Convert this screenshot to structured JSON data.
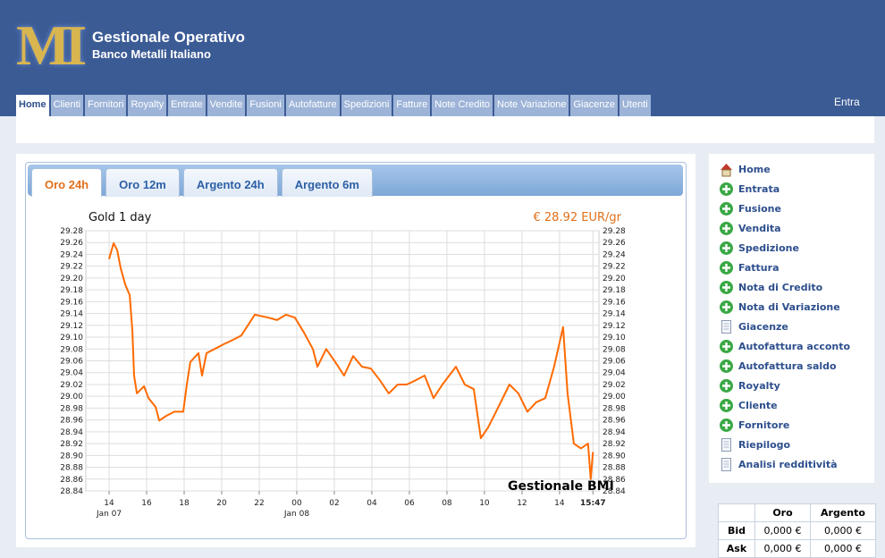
{
  "header": {
    "logo": "MI",
    "title": "Gestionale Operativo",
    "subtitle": "Banco Metalli Italiano",
    "login": "Entra"
  },
  "nav": {
    "items": [
      "Home",
      "Clienti",
      "Fornitori",
      "Royalty",
      "Entrate",
      "Vendite",
      "Fusioni",
      "Autofatture",
      "Spedizioni",
      "Fatture",
      "Note Credito",
      "Note Variazione",
      "Giacenze",
      "Utenti"
    ],
    "active": 0
  },
  "tabs": {
    "items": [
      "Oro 24h",
      "Oro 12m",
      "Argento 24h",
      "Argento 6m"
    ],
    "active": 0
  },
  "chart_data": {
    "type": "line",
    "title": "Gold 1 day",
    "price": "€ 28.92 EUR/gr",
    "watermark": "Gestionale BMI",
    "x": [
      14.0,
      14.24,
      14.43,
      14.62,
      14.86,
      15.1,
      15.24,
      15.33,
      15.48,
      15.86,
      16.1,
      16.48,
      16.67,
      17.05,
      17.48,
      17.95,
      18.14,
      18.33,
      18.76,
      18.95,
      19.19,
      19.62,
      20.1,
      20.57,
      21.05,
      21.52,
      21.76,
      22.48,
      22.95,
      23.43,
      23.9,
      24.38,
      24.86,
      25.1,
      25.57,
      26.05,
      26.52,
      27.0,
      27.48,
      27.95,
      28.43,
      28.9,
      29.38,
      29.86,
      30.33,
      30.81,
      31.29,
      31.76,
      32.48,
      32.95,
      33.43,
      33.81,
      34.19,
      34.62,
      35.33,
      35.81,
      36.29,
      36.76,
      37.24,
      37.71,
      38.19,
      38.43,
      38.76,
      39.14,
      39.52,
      39.66,
      39.78
    ],
    "series": [
      {
        "color": "#ff6a00",
        "values": [
          29.232,
          29.259,
          29.247,
          29.216,
          29.189,
          29.171,
          29.11,
          29.035,
          29.005,
          29.017,
          28.997,
          28.982,
          28.959,
          28.967,
          28.974,
          28.974,
          29.02,
          29.058,
          29.073,
          29.035,
          29.073,
          29.08,
          29.088,
          29.095,
          29.103,
          29.126,
          29.138,
          29.133,
          29.129,
          29.138,
          29.133,
          29.108,
          29.08,
          29.05,
          29.08,
          29.058,
          29.035,
          29.068,
          29.05,
          29.047,
          29.027,
          29.005,
          29.02,
          29.02,
          29.027,
          29.035,
          28.997,
          29.02,
          29.05,
          29.02,
          29.012,
          28.929,
          28.947,
          28.974,
          29.02,
          29.005,
          28.974,
          28.99,
          28.997,
          29.05,
          29.117,
          29.005,
          28.92,
          28.912,
          28.92,
          28.86,
          28.906
        ]
      }
    ],
    "xlim": [
      12.76,
      40.1
    ],
    "xticks": [
      14,
      16,
      18,
      20,
      22,
      {
        "value": 24,
        "label": "00"
      },
      {
        "value": 26,
        "label": "02"
      },
      {
        "value": 28,
        "label": "04"
      },
      {
        "value": 30,
        "label": "06"
      },
      {
        "value": 32,
        "label": "08"
      },
      {
        "value": 34,
        "label": "10"
      },
      {
        "value": 36,
        "label": "12"
      },
      {
        "value": 38,
        "label": "14"
      },
      {
        "value": 39.78,
        "label": "15:47"
      }
    ],
    "x_date_labels": [
      {
        "value": 14,
        "label": "Jan 07"
      },
      {
        "value": 24,
        "label": "Jan 08"
      }
    ],
    "ylim": [
      28.84,
      29.28
    ],
    "yticks": [
      28.84,
      28.86,
      28.88,
      {
        "value": 28.9,
        "label": "28.90"
      },
      28.92,
      28.94,
      28.96,
      28.98,
      {
        "value": 29,
        "label": "29.00"
      },
      29.02,
      29.04,
      29.06,
      29.08,
      {
        "value": 29.1,
        "label": "29.10"
      },
      29.12,
      29.14,
      29.16,
      29.18,
      {
        "value": 29.2,
        "label": "29.20"
      },
      29.22,
      29.24,
      29.26,
      29.28
    ],
    "grid": true,
    "right_axis": true
  },
  "sidebar": {
    "links": [
      {
        "label": "Home",
        "icon": "home"
      },
      {
        "label": "Entrata",
        "icon": "add"
      },
      {
        "label": "Fusione",
        "icon": "add"
      },
      {
        "label": "Vendita",
        "icon": "add"
      },
      {
        "label": "Spedizione",
        "icon": "add"
      },
      {
        "label": "Fattura",
        "icon": "add"
      },
      {
        "label": "Nota di Credito",
        "icon": "add"
      },
      {
        "label": "Nota di Variazione",
        "icon": "add"
      },
      {
        "label": "Giacenze",
        "icon": "doc"
      },
      {
        "label": "Autofattura acconto",
        "icon": "add"
      },
      {
        "label": "Autofattura saldo",
        "icon": "add"
      },
      {
        "label": "Royalty",
        "icon": "add"
      },
      {
        "label": "Cliente",
        "icon": "add"
      },
      {
        "label": "Fornitore",
        "icon": "add"
      },
      {
        "label": "Riepilogo",
        "icon": "doc"
      },
      {
        "label": "Analisi redditività",
        "icon": "doc"
      }
    ]
  },
  "prices": {
    "headers": [
      "Oro",
      "Argento"
    ],
    "rows": [
      {
        "label": "Bid",
        "values": [
          "0,000 €",
          "0,000 €"
        ]
      },
      {
        "label": "Ask",
        "values": [
          "0,000 €",
          "0,000 €"
        ]
      }
    ]
  }
}
